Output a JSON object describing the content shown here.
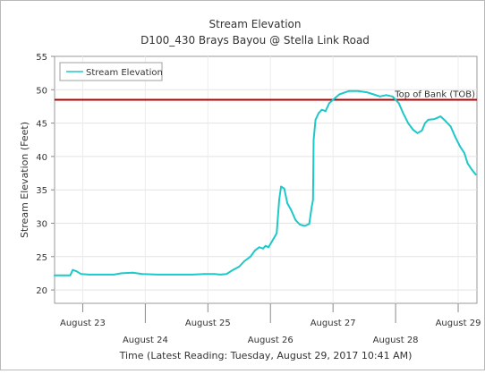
{
  "chart_data": {
    "type": "line",
    "title": "Stream Elevation",
    "subtitle": "D100_430 Brays Bayou @ Stella Link Road",
    "xlabel": "Time (Latest Reading: Tuesday, August 29, 2017 10:41 AM)",
    "ylabel": "Stream Elevation (Feet)",
    "ylim": [
      18,
      55
    ],
    "yticks": [
      20,
      25,
      30,
      35,
      40,
      45,
      50,
      55
    ],
    "xlim": [
      22.55,
      29.3
    ],
    "xticks": [
      {
        "x": 23,
        "label": "August 23",
        "row": 1
      },
      {
        "x": 24,
        "label": "August 24",
        "row": 2
      },
      {
        "x": 25,
        "label": "August 25",
        "row": 1
      },
      {
        "x": 26,
        "label": "August 26",
        "row": 2
      },
      {
        "x": 27,
        "label": "August 27",
        "row": 1
      },
      {
        "x": 28,
        "label": "August 28",
        "row": 2
      },
      {
        "x": 29,
        "label": "August 29",
        "row": 1
      }
    ],
    "grid": true,
    "legend": {
      "position": "top-left",
      "entries": [
        "Stream Elevation"
      ]
    },
    "series": [
      {
        "name": "Stream Elevation",
        "color": "#1ec8c8",
        "points": [
          [
            22.55,
            22.2
          ],
          [
            22.8,
            22.2
          ],
          [
            22.84,
            23.0
          ],
          [
            22.9,
            22.8
          ],
          [
            22.97,
            22.4
          ],
          [
            23.1,
            22.3
          ],
          [
            23.5,
            22.3
          ],
          [
            23.62,
            22.5
          ],
          [
            23.8,
            22.6
          ],
          [
            23.95,
            22.4
          ],
          [
            24.2,
            22.3
          ],
          [
            24.6,
            22.3
          ],
          [
            24.75,
            22.3
          ],
          [
            24.95,
            22.4
          ],
          [
            25.1,
            22.4
          ],
          [
            25.2,
            22.3
          ],
          [
            25.3,
            22.4
          ],
          [
            25.4,
            23.0
          ],
          [
            25.5,
            23.5
          ],
          [
            25.58,
            24.3
          ],
          [
            25.68,
            25.0
          ],
          [
            25.75,
            25.9
          ],
          [
            25.82,
            26.4
          ],
          [
            25.88,
            26.2
          ],
          [
            25.92,
            26.6
          ],
          [
            25.97,
            26.4
          ],
          [
            26.02,
            27.2
          ],
          [
            26.07,
            28.0
          ],
          [
            26.1,
            28.5
          ],
          [
            26.14,
            33.5
          ],
          [
            26.17,
            35.5
          ],
          [
            26.22,
            35.2
          ],
          [
            26.27,
            33.0
          ],
          [
            26.33,
            32.0
          ],
          [
            26.4,
            30.5
          ],
          [
            26.47,
            29.8
          ],
          [
            26.55,
            29.6
          ],
          [
            26.62,
            29.9
          ],
          [
            26.66,
            32.5
          ],
          [
            26.68,
            33.5
          ],
          [
            26.69,
            42.5
          ],
          [
            26.72,
            45.5
          ],
          [
            26.77,
            46.5
          ],
          [
            26.82,
            47.0
          ],
          [
            26.88,
            46.8
          ],
          [
            26.94,
            48.0
          ],
          [
            27.0,
            48.5
          ],
          [
            27.1,
            49.3
          ],
          [
            27.25,
            49.8
          ],
          [
            27.4,
            49.8
          ],
          [
            27.55,
            49.6
          ],
          [
            27.65,
            49.3
          ],
          [
            27.75,
            49.0
          ],
          [
            27.85,
            49.2
          ],
          [
            27.95,
            49.0
          ],
          [
            28.05,
            48.0
          ],
          [
            28.12,
            46.5
          ],
          [
            28.2,
            45.0
          ],
          [
            28.28,
            44.0
          ],
          [
            28.35,
            43.5
          ],
          [
            28.42,
            43.9
          ],
          [
            28.47,
            45.0
          ],
          [
            28.52,
            45.5
          ],
          [
            28.62,
            45.6
          ],
          [
            28.72,
            46.0
          ],
          [
            28.8,
            45.3
          ],
          [
            28.88,
            44.5
          ],
          [
            28.95,
            43.0
          ],
          [
            29.03,
            41.5
          ],
          [
            29.1,
            40.5
          ],
          [
            29.15,
            39.0
          ],
          [
            29.22,
            38.0
          ],
          [
            29.28,
            37.3
          ]
        ]
      }
    ],
    "annotations": [
      {
        "label": "Top of Bank (TOB)",
        "y": 48.5,
        "color": "#b30000"
      }
    ]
  }
}
